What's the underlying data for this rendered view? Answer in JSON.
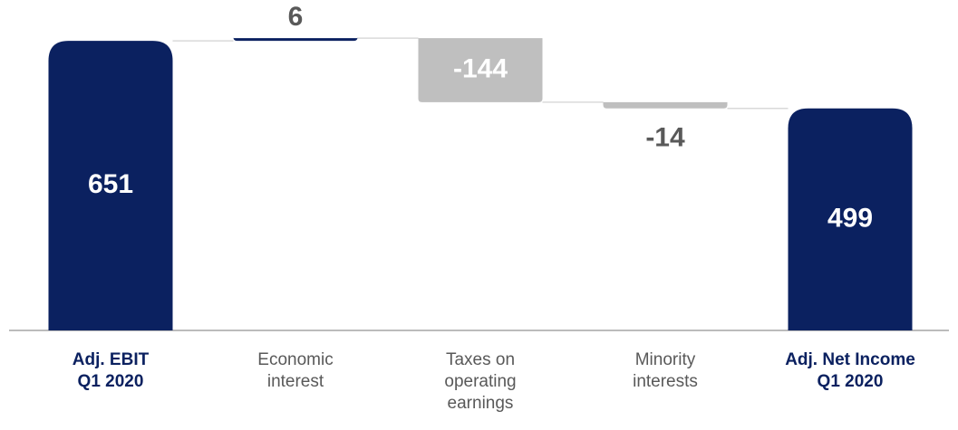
{
  "chart_data": {
    "type": "waterfall",
    "categories": [
      "Adj. EBIT\nQ1 2020",
      "Economic\ninterest",
      "Taxes on\noperating\nearnings",
      "Minority\ninterests",
      "Adj. Net Income\nQ1 2020"
    ],
    "values": [
      651,
      6,
      -144,
      -14,
      499
    ],
    "total": [
      true,
      false,
      false,
      false,
      true
    ],
    "colors": {
      "total": "#0b2160",
      "increase": "#0b2160",
      "decrease": "#bfbfbf"
    },
    "ylim": [
      0,
      700
    ]
  }
}
